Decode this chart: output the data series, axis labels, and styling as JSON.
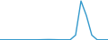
{
  "x": [
    0,
    1,
    2,
    3,
    4,
    5,
    6,
    7,
    8,
    9,
    10,
    11,
    12,
    13,
    14,
    15,
    16,
    17,
    18,
    19,
    20
  ],
  "y": [
    5,
    5,
    5,
    5,
    5,
    5,
    5,
    5,
    8,
    10,
    8,
    5,
    5,
    5,
    100,
    800,
    500,
    100,
    5,
    5,
    5
  ],
  "line_color": "#3399cc",
  "linewidth": 1.0,
  "background_color": "#ffffff",
  "ylim": [
    0,
    820
  ],
  "xlim": [
    0,
    20
  ]
}
